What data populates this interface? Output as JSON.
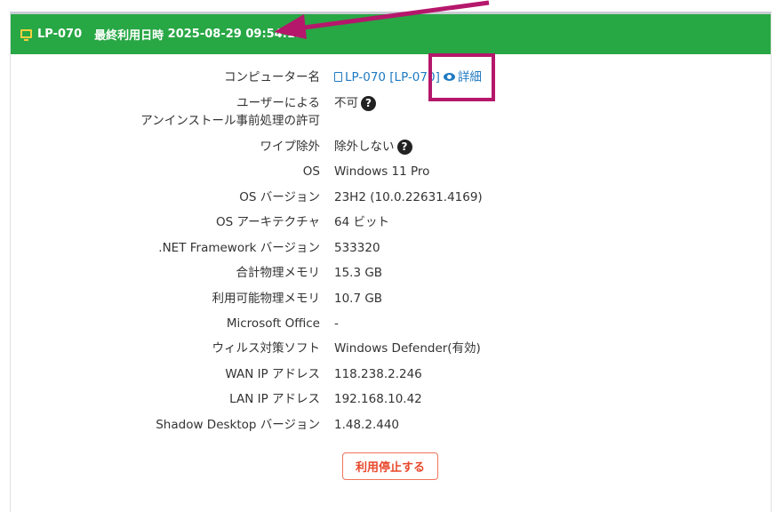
{
  "header": {
    "icon": "monitor-icon",
    "computer": "LP-070",
    "last_used_label": "最終利用日時",
    "last_used": "2025-08-29 09:54:17",
    "color": "#28a745"
  },
  "rows": [
    {
      "label": "コンピューター名",
      "value": "LP-070 [LP-070]",
      "detail": "詳細"
    },
    {
      "label": "ユーザーによる",
      "label2": "アンインストール事前処理の許可",
      "value": "不可"
    },
    {
      "label": "ワイプ除外",
      "value": "除外しない"
    },
    {
      "label": "OS",
      "value": "Windows 11 Pro"
    },
    {
      "label": "OS バージョン",
      "value": "23H2 (10.0.22631.4169)"
    },
    {
      "label": "OS アーキテクチャ",
      "value": "64 ビット"
    },
    {
      "label": ".NET Framework バージョン",
      "value": "533320"
    },
    {
      "label": "合計物理メモリ",
      "value": "15.3 GB"
    },
    {
      "label": "利用可能物理メモリ",
      "value": "10.7 GB"
    },
    {
      "label": "Microsoft Office",
      "value": "-"
    },
    {
      "label": "ウィルス対策ソフト",
      "value": "Windows Defender(有効)"
    },
    {
      "label": "WAN IP アドレス",
      "value": "118.238.2.246"
    },
    {
      "label": "LAN IP アドレス",
      "value": "192.168.10.42"
    },
    {
      "label": "Shadow Desktop バージョン",
      "value": "1.48.2.440"
    }
  ],
  "help_glyph": "?",
  "stop_button": "利用停止する",
  "annotation_color": "#b5176b"
}
